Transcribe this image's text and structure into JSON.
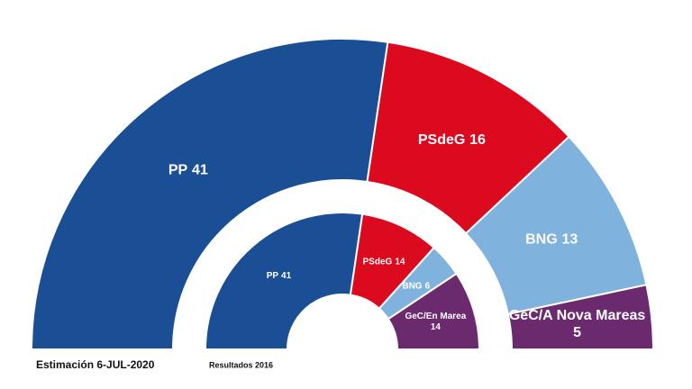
{
  "chart_data": [
    {
      "type": "semicircle",
      "title": "Estimación 6-JUL-2020",
      "categories": [
        "PP",
        "PSdeG",
        "BNG",
        "GeC/A Nova Mareas"
      ],
      "values": [
        41,
        16,
        13,
        5
      ],
      "colors": [
        "#1a4f95",
        "#dc0a1e",
        "#7fb2dc",
        "#6c2a6e"
      ]
    },
    {
      "type": "semicircle",
      "title": "Resultados 2016",
      "categories": [
        "PP",
        "PSdeG",
        "BNG",
        "GeC/En Marea"
      ],
      "values": [
        41,
        14,
        6,
        14
      ],
      "colors": [
        "#1a4f95",
        "#dc0a1e",
        "#7fb2dc",
        "#6c2a6e"
      ]
    }
  ]
}
